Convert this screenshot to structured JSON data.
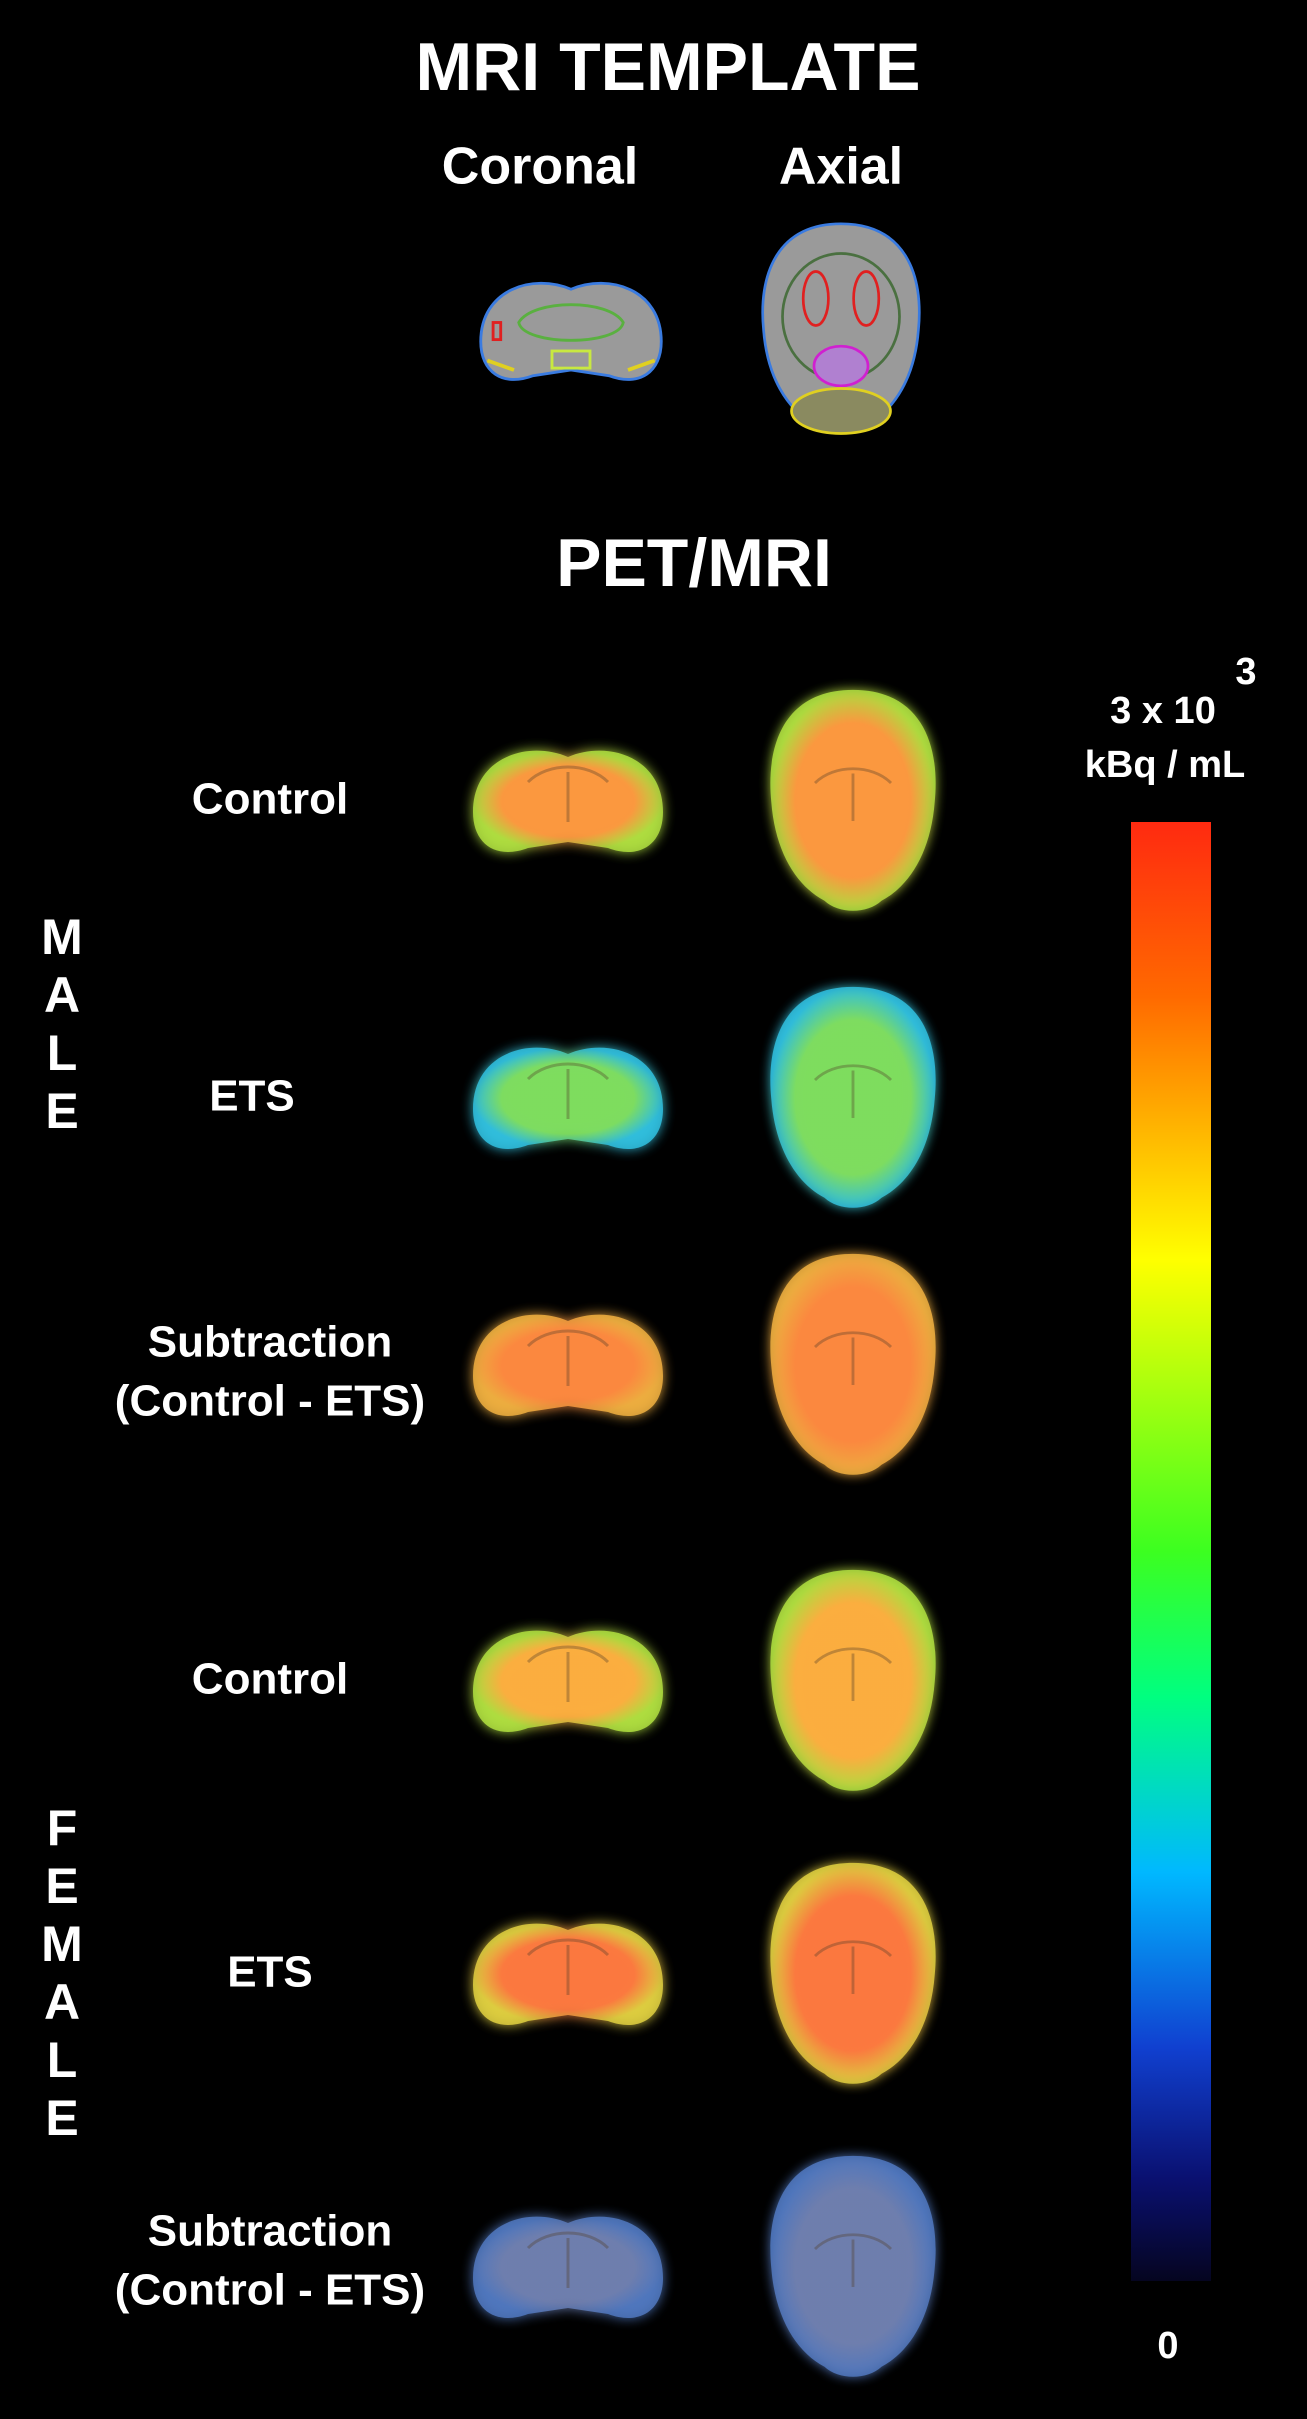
{
  "header": {
    "title": "MRI TEMPLATE",
    "views": [
      "Coronal",
      "Axial"
    ]
  },
  "section": {
    "title": "PET/MRI"
  },
  "colorbar": {
    "max_label": "3 x 10",
    "max_exponent": "3",
    "unit": "kBq / mL",
    "min_label": "0"
  },
  "groups": [
    {
      "name_letters": [
        "M",
        "A",
        "L",
        "E"
      ],
      "rows": [
        {
          "label": [
            "Control"
          ]
        },
        {
          "label": [
            "ETS"
          ]
        },
        {
          "label": [
            "Subtraction",
            "(Control - ETS)"
          ]
        }
      ]
    },
    {
      "name_letters": [
        "F",
        "E",
        "M",
        "A",
        "L",
        "E"
      ],
      "rows": [
        {
          "label": [
            "Control"
          ]
        },
        {
          "label": [
            "ETS"
          ]
        },
        {
          "label": [
            "Subtraction",
            "(Control - ETS)"
          ]
        }
      ]
    }
  ]
}
